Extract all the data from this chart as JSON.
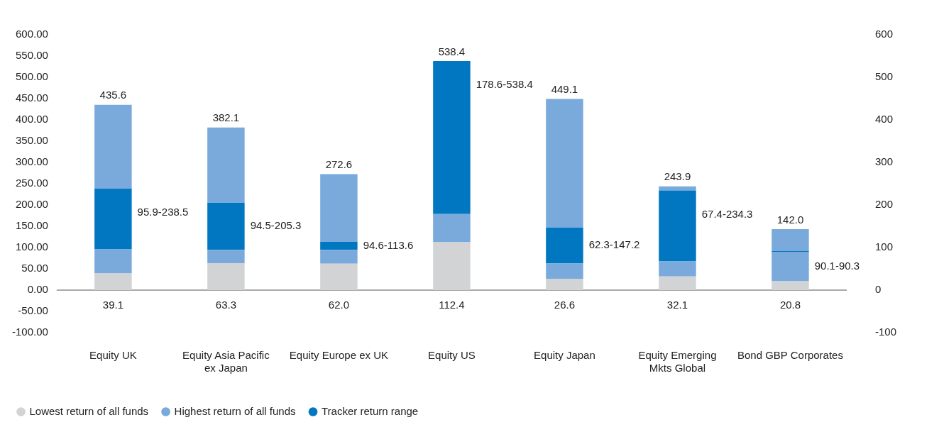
{
  "chart_data": {
    "type": "bar",
    "stacked": true,
    "categories": [
      "Equity UK",
      "Equity Asia Pacific ex Japan",
      "Equity Europe ex UK",
      "Equity US",
      "Equity Japan",
      "Equity Emerging Mkts Global",
      "Bond GBP Corporates"
    ],
    "series": [
      {
        "name": "Lowest return of all funds",
        "color": "#d1d3d5",
        "values": [
          39.1,
          63.3,
          62.0,
          112.4,
          26.6,
          32.1,
          20.8
        ],
        "value_labels": [
          "39.1",
          "63.3",
          "62.0",
          "112.4",
          "26.6",
          "32.1",
          "20.8"
        ]
      },
      {
        "name": "Highest return of all funds",
        "color": "#7aaadb",
        "values": [
          56.8,
          31.2,
          32.6,
          66.2,
          35.7,
          35.3,
          69.3
        ]
      },
      {
        "name": "Tracker return range",
        "color": "#0077c0",
        "values": [
          142.6,
          110.8,
          19.0,
          359.8,
          84.9,
          166.9,
          0.2
        ]
      },
      {
        "color": "#7aaadb",
        "values": [
          197.1,
          176.8,
          159.0,
          0,
          301.9,
          9.6,
          51.7
        ]
      }
    ],
    "annotations": [
      {
        "text": "95.9-238.5",
        "x": "Equity UK",
        "y": 238.5
      },
      {
        "text": "94.5-205.3",
        "x": "Equity Asia Pacific ex Japan",
        "y": 205.3
      },
      {
        "text": "94.6-113.6",
        "x": "Equity Europe ex UK",
        "y": 113.6
      },
      {
        "text": "178.6-538.4",
        "x": "Equity US",
        "y": 538.4
      },
      {
        "text": "62.3-147.2",
        "x": "Equity Japan",
        "y": 147.2
      },
      {
        "text": "67.4-234.3",
        "x": "Equity Emerging Mkts Global",
        "y": 234.3
      },
      {
        "text": "90.1-90.3",
        "x": "Bond GBP Corporates",
        "y": 90.3
      }
    ],
    "totals": [
      "435.6",
      "382.1",
      "272.6",
      "538.4",
      "449.1",
      "243.9",
      "142.0"
    ],
    "ylim": [
      -100,
      600
    ],
    "yticks": [
      {
        "value": -100,
        "label": "-100.00"
      },
      {
        "value": -50,
        "label": "-50.00"
      },
      {
        "value": 0,
        "label": "0.00"
      },
      {
        "value": 50,
        "label": "50.00"
      },
      {
        "value": 100,
        "label": "100.00"
      },
      {
        "value": 150,
        "label": "150.00"
      },
      {
        "value": 200,
        "label": "200.00"
      },
      {
        "value": 250,
        "label": "250.00"
      },
      {
        "value": 300,
        "label": "300.00"
      },
      {
        "value": 350,
        "label": "350.00"
      },
      {
        "value": 400,
        "label": "400.00"
      },
      {
        "value": 450,
        "label": "450.00"
      },
      {
        "value": 500,
        "label": "500.00"
      },
      {
        "value": 550,
        "label": "550.00"
      },
      {
        "value": 600,
        "label": "600.00"
      }
    ],
    "y2lim": [
      -100,
      600
    ],
    "y2ticks": [
      -100,
      0,
      100,
      200,
      300,
      400,
      500,
      600
    ],
    "legend": "bottom left"
  }
}
